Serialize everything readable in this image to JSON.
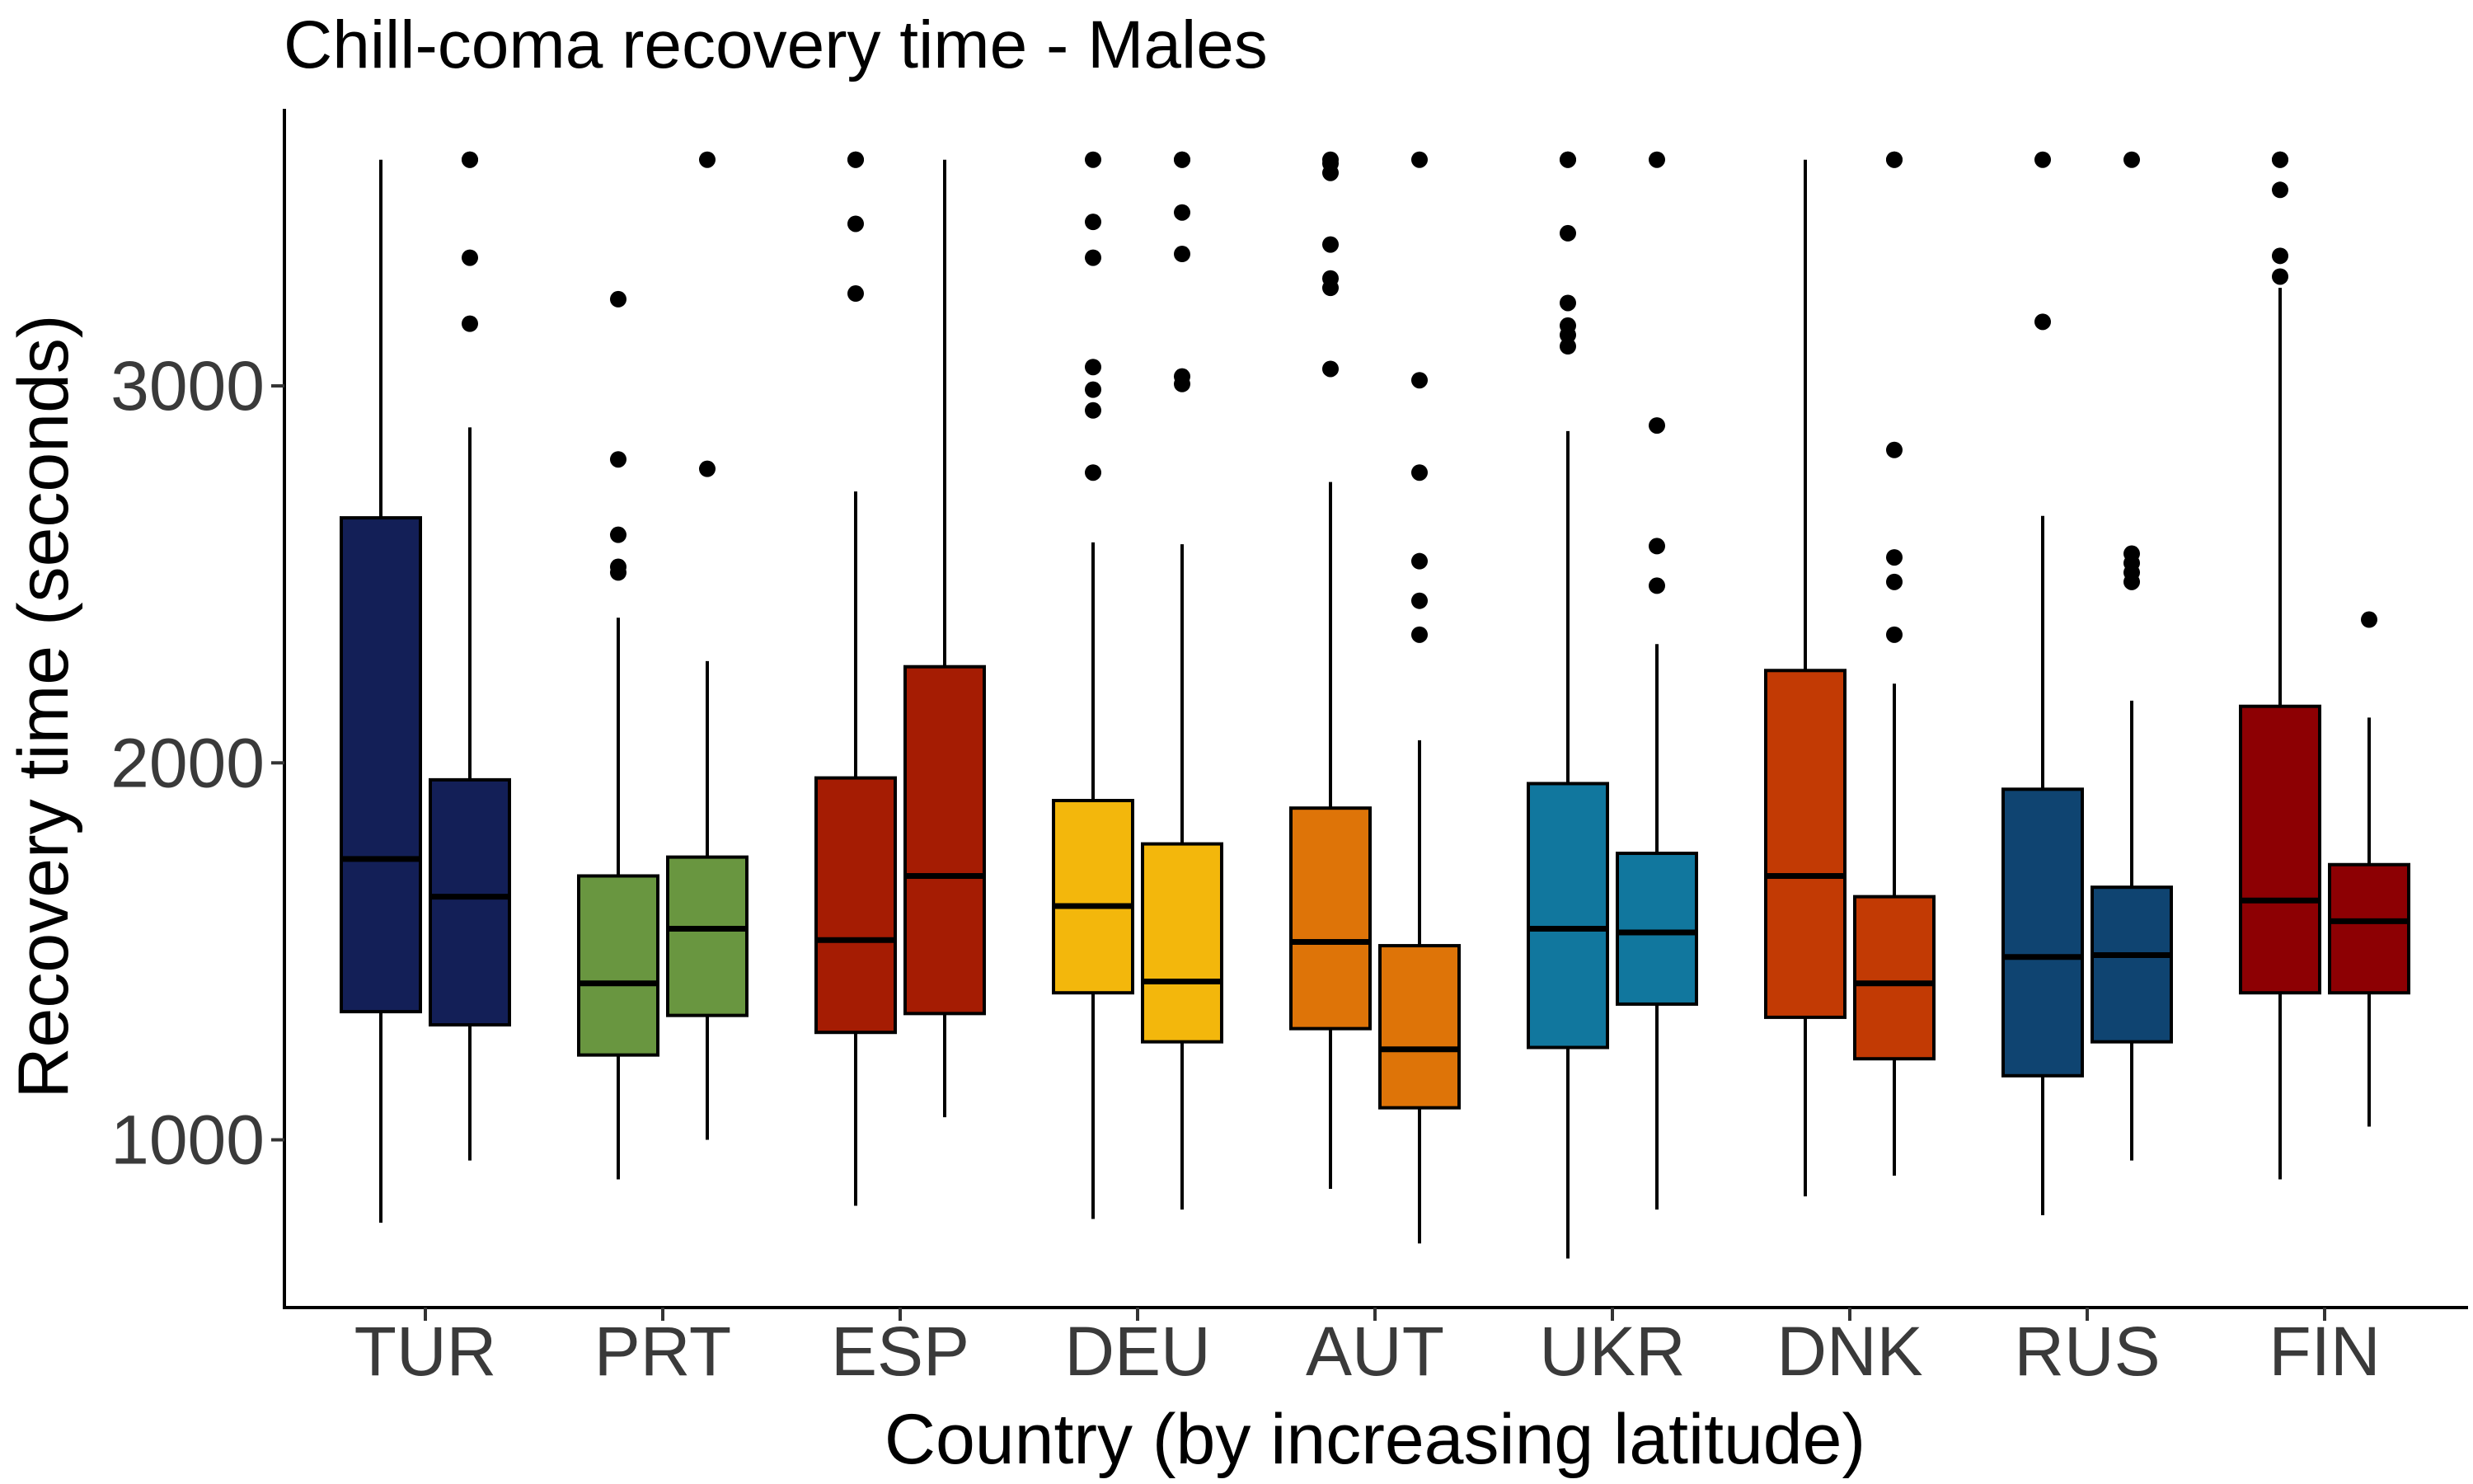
{
  "chart_data": {
    "type": "box",
    "title": "Chill-coma recovery time - Males",
    "xlabel": "Country (by increasing latitude)",
    "ylabel": "Recovery time (seconds)",
    "categories": [
      "TUR",
      "PRT",
      "ESP",
      "DEU",
      "AUT",
      "UKR",
      "DNK",
      "RUS",
      "FIN"
    ],
    "yticks": [
      1000,
      2000,
      3000
    ],
    "ytick_labels": [
      "1000",
      "2000",
      "3000"
    ],
    "ylim": [
      555,
      3735
    ],
    "grid": false,
    "legend": "none",
    "colors": {
      "TUR": "#131f57",
      "PRT": "#699640",
      "ESP": "#a51c03",
      "DEU": "#f3b70c",
      "AUT": "#de7408",
      "UKR": "#11779e",
      "DNK": "#c23a04",
      "RUS": "#0f4471",
      "FIN": "#8d0003"
    },
    "boxes": [
      {
        "country": "TUR",
        "position": 1,
        "whisker_low": 780,
        "q1": 1340,
        "median": 1745,
        "q3": 2650,
        "whisker_high": 3600,
        "outliers": []
      },
      {
        "country": "TUR",
        "position": 2,
        "whisker_low": 945,
        "q1": 1305,
        "median": 1645,
        "q3": 1955,
        "whisker_high": 2890,
        "outliers": [
          3165,
          3340,
          3600,
          3600
        ]
      },
      {
        "country": "PRT",
        "position": 1,
        "whisker_low": 895,
        "q1": 1225,
        "median": 1415,
        "q3": 1700,
        "whisker_high": 2385,
        "outliers": [
          2505,
          2520,
          2605,
          2805,
          3230
        ]
      },
      {
        "country": "PRT",
        "position": 2,
        "whisker_low": 1000,
        "q1": 1330,
        "median": 1560,
        "q3": 1750,
        "whisker_high": 2270,
        "outliers": [
          2780,
          3600
        ]
      },
      {
        "country": "ESP",
        "position": 1,
        "whisker_low": 825,
        "q1": 1285,
        "median": 1530,
        "q3": 1960,
        "whisker_high": 2720,
        "outliers": [
          3245,
          3430,
          3600,
          3600
        ]
      },
      {
        "country": "ESP",
        "position": 2,
        "whisker_low": 1060,
        "q1": 1335,
        "median": 1700,
        "q3": 2255,
        "whisker_high": 3600,
        "outliers": []
      },
      {
        "country": "DEU",
        "position": 1,
        "whisker_low": 790,
        "q1": 1390,
        "median": 1620,
        "q3": 1900,
        "whisker_high": 2585,
        "outliers": [
          2770,
          2935,
          2990,
          3050,
          3340,
          3435,
          3600
        ]
      },
      {
        "country": "DEU",
        "position": 2,
        "whisker_low": 815,
        "q1": 1260,
        "median": 1420,
        "q3": 1785,
        "whisker_high": 2580,
        "outliers": [
          3005,
          3025,
          3350,
          3460,
          3600,
          3600
        ]
      },
      {
        "country": "AUT",
        "position": 1,
        "whisker_low": 870,
        "q1": 1295,
        "median": 1525,
        "q3": 1880,
        "whisker_high": 2745,
        "outliers": [
          3045,
          3260,
          3285,
          3375,
          3565,
          3590,
          3600
        ]
      },
      {
        "country": "AUT",
        "position": 2,
        "whisker_low": 725,
        "q1": 1085,
        "median": 1240,
        "q3": 1515,
        "whisker_high": 2060,
        "outliers": [
          2340,
          2430,
          2535,
          2770,
          3015,
          3600
        ]
      },
      {
        "country": "UKR",
        "position": 1,
        "whisker_low": 685,
        "q1": 1245,
        "median": 1560,
        "q3": 1945,
        "whisker_high": 2880,
        "outliers": [
          3105,
          3135,
          3160,
          3220,
          3405,
          3600,
          3600
        ]
      },
      {
        "country": "UKR",
        "position": 2,
        "whisker_low": 815,
        "q1": 1360,
        "median": 1550,
        "q3": 1760,
        "whisker_high": 2315,
        "outliers": [
          2470,
          2575,
          2895,
          3600
        ]
      },
      {
        "country": "DNK",
        "position": 1,
        "whisker_low": 850,
        "q1": 1325,
        "median": 1700,
        "q3": 2245,
        "whisker_high": 3600,
        "outliers": []
      },
      {
        "country": "DNK",
        "position": 2,
        "whisker_low": 905,
        "q1": 1215,
        "median": 1415,
        "q3": 1645,
        "whisker_high": 2210,
        "outliers": [
          2340,
          2480,
          2545,
          2830,
          3600,
          3600
        ]
      },
      {
        "country": "RUS",
        "position": 1,
        "whisker_low": 800,
        "q1": 1170,
        "median": 1485,
        "q3": 1930,
        "whisker_high": 2655,
        "outliers": [
          3170,
          3600
        ]
      },
      {
        "country": "RUS",
        "position": 2,
        "whisker_low": 945,
        "q1": 1260,
        "median": 1490,
        "q3": 1670,
        "whisker_high": 2165,
        "outliers": [
          2480,
          2505,
          2530,
          2555,
          3600
        ]
      },
      {
        "country": "FIN",
        "position": 1,
        "whisker_low": 895,
        "q1": 1390,
        "median": 1635,
        "q3": 2150,
        "whisker_high": 3260,
        "outliers": [
          3290,
          3345,
          3520,
          3600,
          3600
        ]
      },
      {
        "country": "FIN",
        "position": 2,
        "whisker_low": 1035,
        "q1": 1390,
        "median": 1580,
        "q3": 1730,
        "whisker_high": 2120,
        "outliers": [
          2380
        ]
      }
    ]
  }
}
